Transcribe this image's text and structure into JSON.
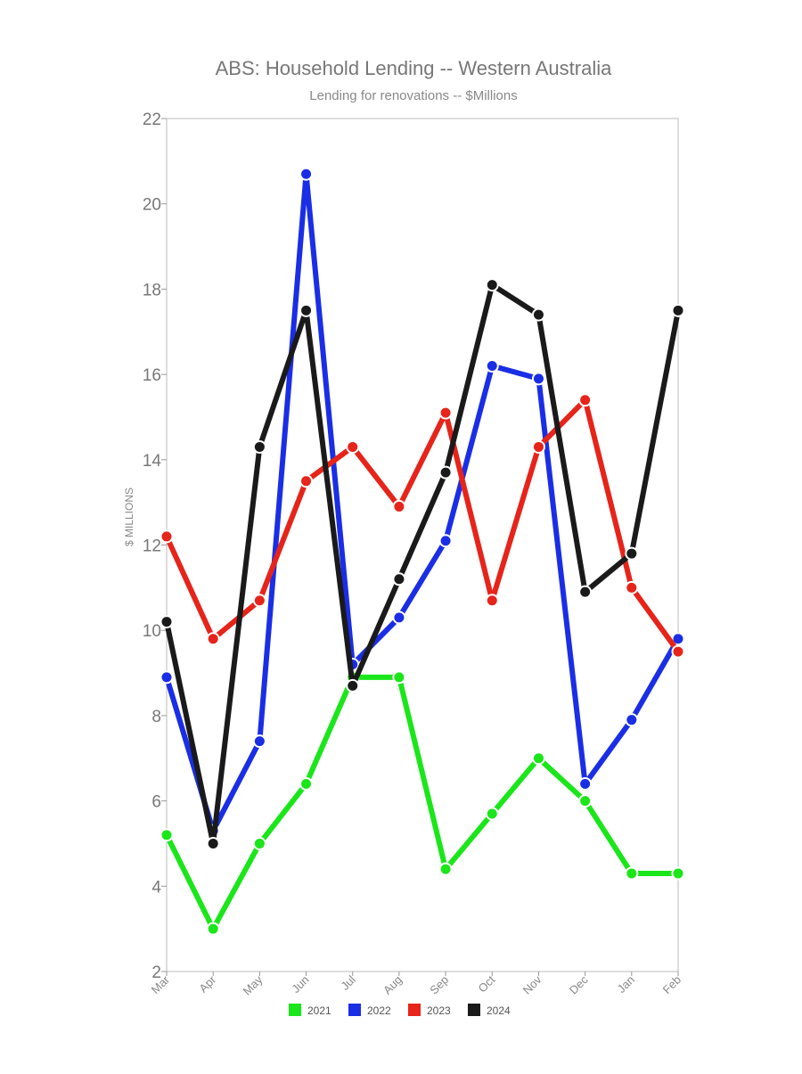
{
  "chart_data": {
    "type": "line",
    "title": "ABS: Household Lending -- Western Australia",
    "subtitle": "Lending for renovations -- $Millions",
    "xlabel": "",
    "ylabel": "$ MILLIONS",
    "categories": [
      "Mar",
      "Apr",
      "May",
      "Jun",
      "Jul",
      "Aug",
      "Sep",
      "Oct",
      "Nov",
      "Dec",
      "Jan",
      "Feb"
    ],
    "ylim": [
      2,
      22
    ],
    "yticks": [
      2,
      4,
      6,
      8,
      10,
      12,
      14,
      16,
      18,
      20,
      22
    ],
    "grid": false,
    "legend_position": "bottom",
    "series": [
      {
        "name": "2021",
        "color": "#1ae61a",
        "values": [
          5.2,
          3.0,
          5.0,
          6.4,
          8.9,
          8.9,
          4.4,
          5.7,
          7.0,
          6.0,
          4.3,
          4.3
        ]
      },
      {
        "name": "2022",
        "color": "#1a2ee6",
        "values": [
          8.9,
          5.3,
          7.4,
          20.7,
          9.2,
          10.3,
          12.1,
          16.2,
          15.9,
          6.4,
          7.9,
          9.8
        ]
      },
      {
        "name": "2023",
        "color": "#e6241a",
        "values": [
          12.2,
          9.8,
          10.7,
          13.5,
          14.3,
          12.9,
          15.1,
          10.7,
          14.3,
          15.4,
          11.0,
          9.5
        ]
      },
      {
        "name": "2024",
        "color": "#1a1a1a",
        "values": [
          10.2,
          5.0,
          14.3,
          17.5,
          8.7,
          11.2,
          13.7,
          18.1,
          17.4,
          10.9,
          11.8,
          17.5
        ]
      }
    ]
  }
}
